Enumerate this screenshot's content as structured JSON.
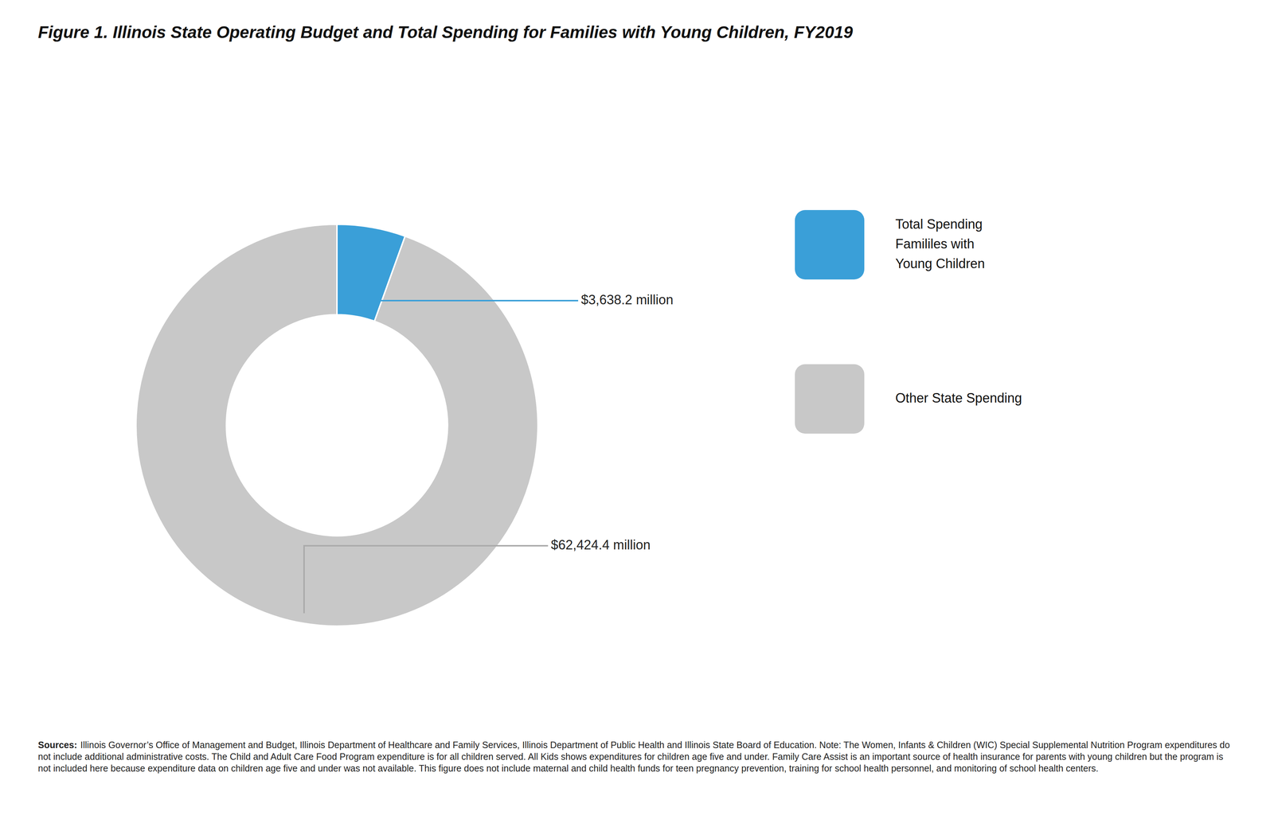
{
  "chart_data": {
    "type": "donut",
    "title": "Figure 1. Illinois State Operating Budget and Total Spending for Families with Young Children, FY2019",
    "categories": [
      "Total Spending\nFamililes with\nYoung Children",
      "Other State Spending"
    ],
    "values": [
      3638.2,
      62424.4
    ],
    "value_labels": [
      "$3,638.2 million",
      "$62,424.4 million"
    ],
    "data_labels": true,
    "colors": [
      "#3a9fd8",
      "#c8c8c8"
    ],
    "legend": "right",
    "annotations": [
      "Sources:",
      "Illinois Governor’s Office of Management and Budget, Illinois Department of Healthcare and Family Services, Illinois Department of Public Health and Illinois State Board of Education. Note: The Women, Infants & Children (WIC) Special Supplemental Nutrition Program expenditures do not include additional administrative costs. The Child and Adult Care Food Program expenditure is for all children served. All Kids shows expenditures for children age five and under. Family Care Assist is an important source of health insurance for parents with young children but the program is not included here because expenditure data on children age five and under was not available. This figure does not include maternal and child health funds for teen pregnancy prevention, training for school health personnel, and monitoring of school health centers."
    ]
  }
}
